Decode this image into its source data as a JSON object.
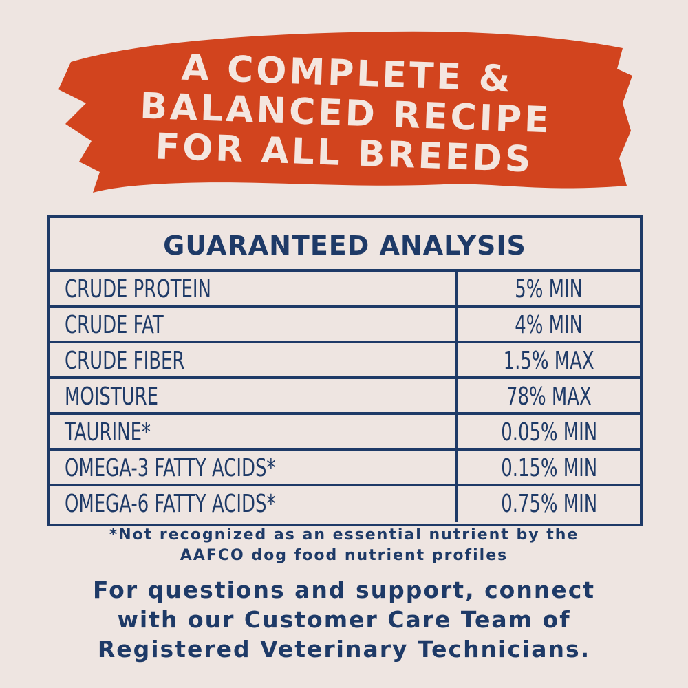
{
  "colors": {
    "background": "#eee5e1",
    "navy": "#1e3a67",
    "banner_orange": "#d2441e",
    "banner_text": "#f4e6df"
  },
  "banner": {
    "lines": [
      "A COMPLETE &",
      "BALANCED RECIPE",
      "FOR ALL BREEDS"
    ]
  },
  "analysis": {
    "title": "GUARANTEED ANALYSIS",
    "rows": [
      {
        "nutrient": "CRUDE PROTEIN",
        "value": "5% MIN"
      },
      {
        "nutrient": "CRUDE FAT",
        "value": "4% MIN"
      },
      {
        "nutrient": "CRUDE FIBER",
        "value": "1.5% MAX"
      },
      {
        "nutrient": "MOISTURE",
        "value": "78% MAX"
      },
      {
        "nutrient": "TAURINE*",
        "value": "0.05% MIN"
      },
      {
        "nutrient": "OMEGA-3 FATTY ACIDS*",
        "value": "0.15% MIN"
      },
      {
        "nutrient": "OMEGA-6 FATTY ACIDS*",
        "value": "0.75% MIN"
      }
    ]
  },
  "footnote": {
    "lines": [
      "*Not recognized as an essential nutrient by the",
      "AAFCO dog food nutrient profiles"
    ]
  },
  "support": {
    "lines": [
      "For questions and support, connect",
      "with our Customer Care Team of",
      "Registered Veterinary Technicians."
    ]
  }
}
